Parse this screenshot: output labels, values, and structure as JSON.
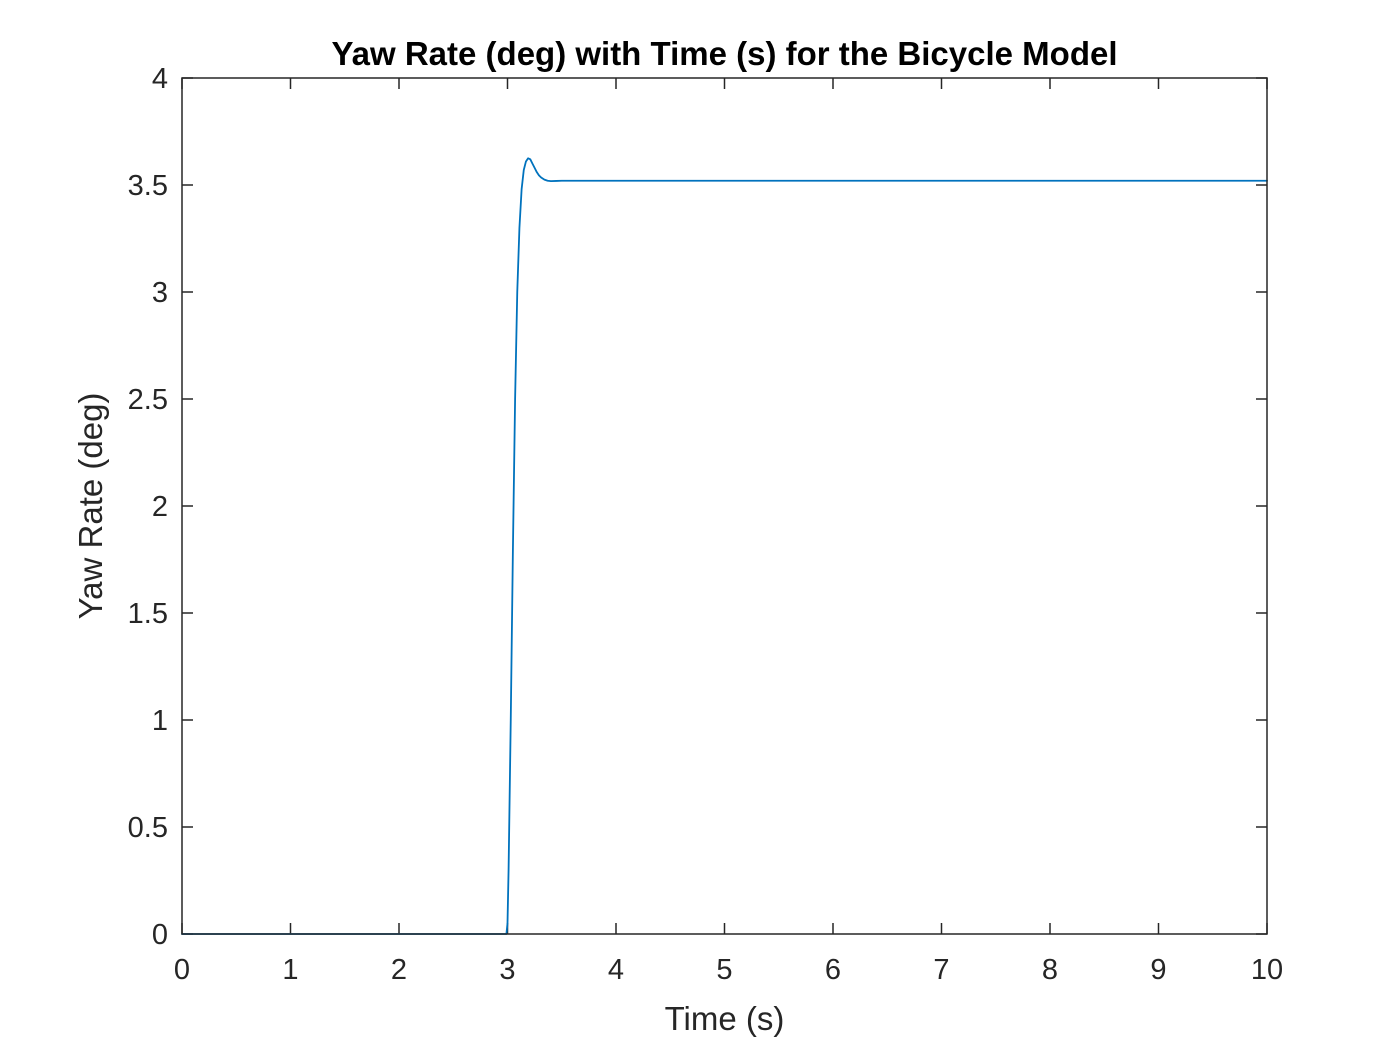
{
  "chart_data": {
    "type": "line",
    "title": "Yaw Rate (deg) with Time (s) for the Bicycle Model",
    "xlabel": "Time (s)",
    "ylabel": "Yaw Rate (deg)",
    "xlim": [
      0,
      10
    ],
    "ylim": [
      0,
      4
    ],
    "xticks": [
      0,
      1,
      2,
      3,
      4,
      5,
      6,
      7,
      8,
      9,
      10
    ],
    "xtick_labels": [
      "0",
      "1",
      "2",
      "3",
      "4",
      "5",
      "6",
      "7",
      "8",
      "9",
      "10"
    ],
    "yticks": [
      0,
      0.5,
      1,
      1.5,
      2,
      2.5,
      3,
      3.5,
      4
    ],
    "ytick_labels": [
      "0",
      "0.5",
      "1",
      "1.5",
      "2",
      "2.5",
      "3",
      "3.5",
      "4"
    ],
    "grid": false,
    "legend": "none",
    "series": [
      {
        "color": "#0072BD",
        "x": [
          0,
          2.99,
          3.0,
          3.01,
          3.03,
          3.05,
          3.07,
          3.09,
          3.11,
          3.13,
          3.15,
          3.17,
          3.19,
          3.21,
          3.23,
          3.25,
          3.27,
          3.29,
          3.31,
          3.34,
          3.37,
          3.4,
          3.45,
          3.5,
          3.6,
          3.8,
          4.0,
          5.0,
          6.0,
          7.0,
          8.0,
          9.0,
          10.0
        ],
        "y": [
          0,
          0,
          0.05,
          0.3,
          1.0,
          1.8,
          2.5,
          3.0,
          3.3,
          3.48,
          3.57,
          3.61,
          3.625,
          3.62,
          3.6,
          3.58,
          3.56,
          3.545,
          3.535,
          3.525,
          3.52,
          3.518,
          3.519,
          3.52,
          3.52,
          3.52,
          3.52,
          3.52,
          3.52,
          3.52,
          3.52,
          3.52,
          3.52
        ]
      }
    ]
  }
}
